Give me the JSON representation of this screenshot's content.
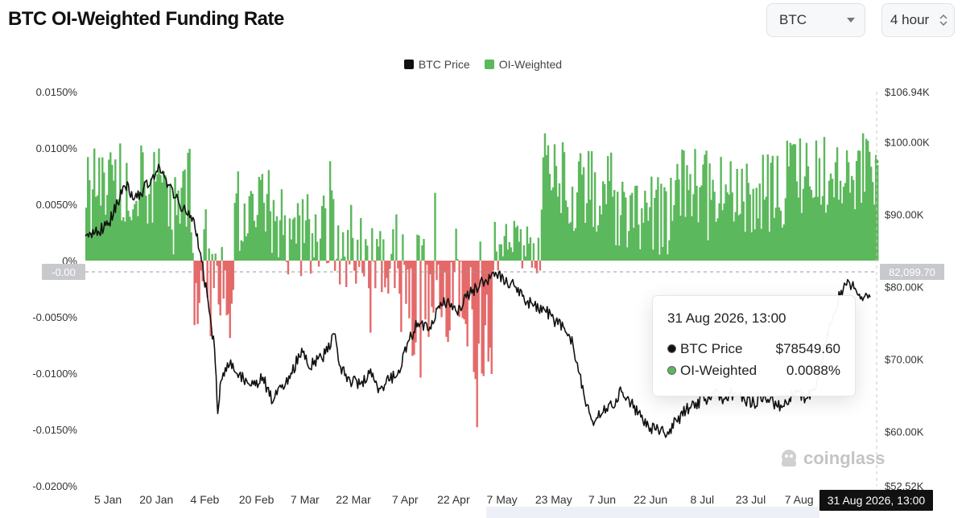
{
  "page": {
    "title": "BTC OI-Weighted Funding Rate",
    "coin_select": {
      "value": "BTC"
    },
    "interval_select": {
      "value": "4 hour"
    },
    "watermark": "coinglass"
  },
  "tooltip": {
    "title": "31 Aug 2026, 13:00",
    "rows": [
      {
        "label": "BTC Price",
        "value": "$78549.60",
        "color": "#111111"
      },
      {
        "label": "OI-Weighted",
        "value": "0.0088%",
        "color": "#5cb85c"
      }
    ]
  },
  "crosshair": {
    "left_value": "-0.00",
    "right_value": "82,099.70",
    "date": "31 Aug 2026, 13:00"
  },
  "chart_data": {
    "type": "bar",
    "legend": [
      {
        "name": "BTC Price",
        "color": "#111111"
      },
      {
        "name": "OI-Weighted",
        "color": "#5cb85c"
      }
    ],
    "legend_position": "top-center",
    "left_axis": {
      "ylim": [
        -0.02,
        0.015
      ],
      "tick_values": [
        0.015,
        0.01,
        0.005,
        0,
        -0.005,
        -0.01,
        -0.015,
        -0.02
      ],
      "tick_labels": [
        "0.0150%",
        "0.0100%",
        "0.0050%",
        "0%",
        "-0.0050%",
        "-0.0100%",
        "-0.0150%",
        "-0.0200%"
      ]
    },
    "right_axis": {
      "ylim": [
        52520,
        106940
      ],
      "tick_values": [
        106940,
        100000,
        90000,
        80000,
        70000,
        60000,
        52520
      ],
      "tick_labels": [
        "$106.94K",
        "$100.00K",
        "$90.00K",
        "$80.00K",
        "$70.00K",
        "$60.00K",
        "$52.52K"
      ]
    },
    "x_axis": {
      "range_days": [
        -3,
        242
      ],
      "tick_days": [
        4,
        19,
        34,
        50,
        65,
        80,
        96,
        111,
        126,
        142,
        157,
        172,
        188,
        203,
        218
      ],
      "tick_labels": [
        "5 Jan",
        "20 Jan",
        "4 Feb",
        "20 Feb",
        "7 Mar",
        "22 Mar",
        "7 Apr",
        "22 Apr",
        "7 May",
        "23 May",
        "7 Jun",
        "22 Jun",
        "8 Jul",
        "23 Jul",
        "7 Aug"
      ]
    },
    "funding_series": {
      "name": "OI-Weighted",
      "positive_color": "#5cb85c",
      "negative_color": "#e46a6a",
      "segments": [
        {
          "from": -3,
          "to": 3,
          "base": 0.006,
          "amp": 0.004
        },
        {
          "from": 3,
          "to": 19,
          "base": 0.007,
          "amp": 0.0038
        },
        {
          "from": 19,
          "to": 30,
          "base": 0.006,
          "amp": 0.004
        },
        {
          "from": 30,
          "to": 43,
          "base": -0.001,
          "amp": 0.006
        },
        {
          "from": 43,
          "to": 58,
          "base": 0.004,
          "amp": 0.0045
        },
        {
          "from": 58,
          "to": 74,
          "base": 0.0025,
          "amp": 0.004
        },
        {
          "from": 74,
          "to": 94,
          "base": 0.001,
          "amp": 0.004
        },
        {
          "from": 94,
          "to": 123,
          "base": -0.004,
          "amp": 0.007
        },
        {
          "from": 123,
          "to": 138,
          "base": 0.0015,
          "amp": 0.003
        },
        {
          "from": 138,
          "to": 160,
          "base": 0.0065,
          "amp": 0.004
        },
        {
          "from": 160,
          "to": 178,
          "base": 0.004,
          "amp": 0.0035
        },
        {
          "from": 178,
          "to": 196,
          "base": 0.0065,
          "amp": 0.0035
        },
        {
          "from": 196,
          "to": 214,
          "base": 0.006,
          "amp": 0.0035
        },
        {
          "from": 214,
          "to": 240,
          "base": 0.0075,
          "amp": 0.0035
        }
      ]
    },
    "price_series": {
      "name": "BTC Price",
      "color": "#111111",
      "unit": "USD",
      "points": [
        [
          -3,
          87000
        ],
        [
          0,
          87500
        ],
        [
          4,
          88500
        ],
        [
          7,
          91500
        ],
        [
          10,
          94500
        ],
        [
          12,
          92000
        ],
        [
          15,
          93500
        ],
        [
          18,
          95500
        ],
        [
          20,
          96500
        ],
        [
          23,
          94000
        ],
        [
          26,
          91500
        ],
        [
          29,
          90500
        ],
        [
          31,
          88000
        ],
        [
          33,
          83500
        ],
        [
          35,
          78000
        ],
        [
          37,
          71500
        ],
        [
          38,
          62500
        ],
        [
          39,
          67000
        ],
        [
          41,
          69500
        ],
        [
          44,
          68000
        ],
        [
          47,
          67000
        ],
        [
          49,
          66500
        ],
        [
          52,
          67500
        ],
        [
          55,
          64000
        ],
        [
          58,
          66500
        ],
        [
          61,
          68000
        ],
        [
          64,
          71500
        ],
        [
          66,
          69000
        ],
        [
          69,
          70000
        ],
        [
          72,
          71000
        ],
        [
          74,
          73500
        ],
        [
          76,
          69000
        ],
        [
          79,
          67000
        ],
        [
          82,
          66500
        ],
        [
          85,
          68000
        ],
        [
          88,
          66000
        ],
        [
          91,
          67000
        ],
        [
          94,
          68500
        ],
        [
          97,
          72500
        ],
        [
          100,
          75000
        ],
        [
          103,
          74000
        ],
        [
          106,
          77000
        ],
        [
          109,
          78000
        ],
        [
          112,
          76500
        ],
        [
          115,
          78500
        ],
        [
          118,
          80000
        ],
        [
          121,
          81000
        ],
        [
          124,
          82000
        ],
        [
          127,
          80500
        ],
        [
          130,
          80000
        ],
        [
          133,
          78000
        ],
        [
          136,
          77500
        ],
        [
          139,
          77000
        ],
        [
          142,
          75500
        ],
        [
          145,
          74500
        ],
        [
          148,
          72000
        ],
        [
          150,
          68000
        ],
        [
          152,
          63500
        ],
        [
          154,
          61500
        ],
        [
          157,
          62500
        ],
        [
          160,
          63500
        ],
        [
          163,
          65500
        ],
        [
          166,
          64000
        ],
        [
          169,
          62000
        ],
        [
          172,
          60500
        ],
        [
          175,
          60000
        ],
        [
          177,
          59500
        ],
        [
          180,
          61500
        ],
        [
          183,
          63000
        ],
        [
          186,
          64000
        ],
        [
          189,
          64500
        ],
        [
          192,
          65500
        ],
        [
          195,
          64500
        ],
        [
          198,
          65500
        ],
        [
          201,
          64500
        ],
        [
          204,
          64000
        ],
        [
          207,
          65000
        ],
        [
          210,
          64000
        ],
        [
          213,
          63500
        ],
        [
          216,
          65000
        ],
        [
          218,
          65500
        ],
        [
          220,
          64500
        ],
        [
          223,
          66000
        ],
        [
          226,
          72000
        ],
        [
          229,
          76500
        ],
        [
          231,
          79500
        ],
        [
          233,
          81000
        ],
        [
          236,
          79000
        ],
        [
          238,
          78500
        ],
        [
          240,
          78549.6
        ]
      ]
    }
  }
}
